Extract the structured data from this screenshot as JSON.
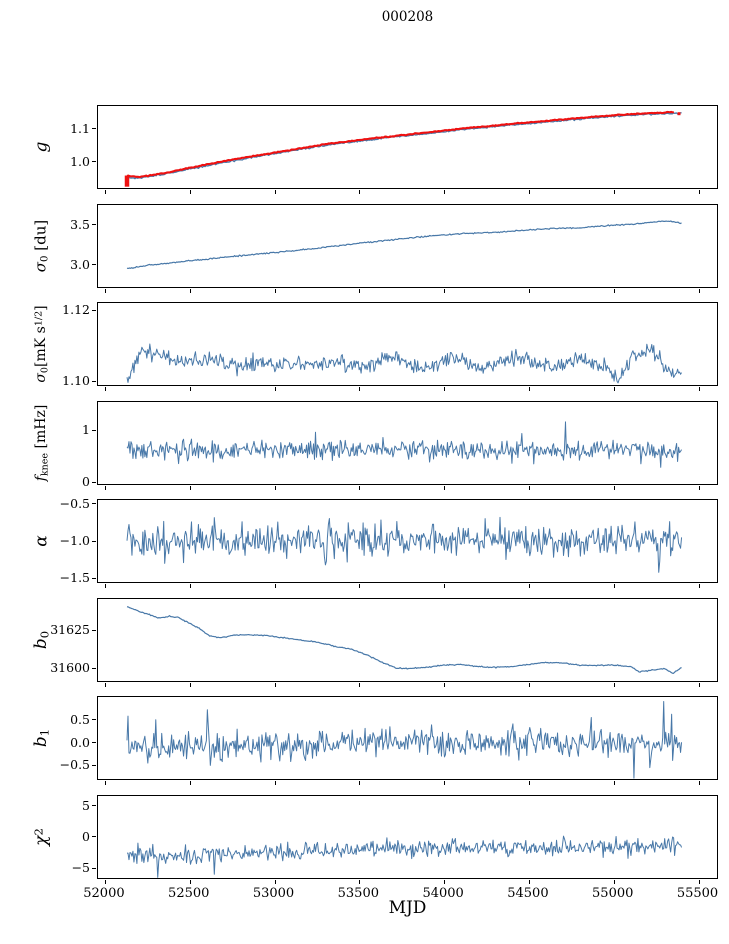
{
  "title": "000208",
  "xlabel": "MJD",
  "colors": {
    "data_line": "#4878a8",
    "fit_line": "#ee1111",
    "axis": "#000000",
    "background": "#ffffff"
  },
  "chart_data": {
    "type": "line",
    "title": "000208",
    "xlabel": "MJD",
    "grid": false,
    "legend": null,
    "xlim": [
      51959,
      55609
    ],
    "x_range_data": [
      52130,
      55400
    ],
    "xticks": [
      52000,
      52500,
      53000,
      53500,
      54000,
      54500,
      55000,
      55500
    ],
    "xtick_labels": [
      "52000",
      "52500",
      "53000",
      "53500",
      "54000",
      "54500",
      "55000",
      "55500"
    ],
    "panels": [
      {
        "id": "g",
        "ylabel": "g",
        "ylabel_parts": [
          {
            "t": "g",
            "i": true
          }
        ],
        "ylabel_size": 17,
        "ylim": [
          0.92,
          1.17
        ],
        "yticks": [
          1.0,
          1.1
        ],
        "ytick_labels": [
          "1.0",
          "1.1"
        ],
        "series": [
          {
            "name": "gain-data-line",
            "color": "#4878a8",
            "lw": 1.3,
            "n": 420,
            "seed": 101,
            "noise": 0.0012,
            "anchors": {
              "x": [
                52130,
                52200,
                52350,
                52500,
                52720,
                52900,
                53100,
                53300,
                53500,
                53700,
                53900,
                54150,
                54400,
                54600,
                54800,
                55000,
                55150,
                55300,
                55400
              ],
              "y": [
                0.953,
                0.95,
                0.962,
                0.978,
                1.0,
                1.016,
                1.033,
                1.05,
                1.063,
                1.075,
                1.086,
                1.1,
                1.112,
                1.121,
                1.13,
                1.138,
                1.143,
                1.147,
                1.149
              ]
            }
          },
          {
            "name": "gain-fit-line",
            "color": "#ee1111",
            "lw": 2.1,
            "n": 400,
            "seed": 142,
            "noise": 0.0007,
            "offset": 0.0035,
            "x_end": 55355,
            "anchors": {
              "x": [
                52130,
                52200,
                52350,
                52500,
                52720,
                52900,
                53100,
                53300,
                53500,
                53700,
                53900,
                54150,
                54400,
                54600,
                54800,
                55000,
                55150,
                55300,
                55400
              ],
              "y": [
                0.953,
                0.95,
                0.962,
                0.978,
                1.0,
                1.016,
                1.033,
                1.05,
                1.063,
                1.075,
                1.086,
                1.1,
                1.112,
                1.121,
                1.13,
                1.138,
                1.143,
                1.147,
                1.149
              ]
            }
          }
        ],
        "extras": {
          "errorbar": {
            "x": 52130,
            "y0": 0.924,
            "y1": 0.958,
            "w": 4.5,
            "color": "#ee1111"
          },
          "marker": {
            "x": 55385,
            "y": 1.1465,
            "s": 3,
            "color": "#ee1111"
          }
        }
      },
      {
        "id": "sigma0-du",
        "ylabel": "σ0 [du]",
        "ylabel_parts": [
          {
            "t": "σ",
            "i": true
          },
          {
            "t": "0",
            "sub": true
          },
          {
            "t": " [du]"
          }
        ],
        "ylabel_size": 15,
        "ylim": [
          2.73,
          3.75
        ],
        "yticks": [
          3.0,
          3.5
        ],
        "ytick_labels": [
          "3.0",
          "3.5"
        ],
        "series": [
          {
            "name": "sigma0-du-line",
            "color": "#4878a8",
            "lw": 1.2,
            "n": 470,
            "seed": 102,
            "noise": 0.004,
            "anchors": {
              "x": [
                52130,
                52250,
                52450,
                52700,
                52950,
                53200,
                53400,
                53550,
                53750,
                53950,
                54150,
                54300,
                54500,
                54650,
                54800,
                55000,
                55120,
                55200,
                55280,
                55340,
                55400
              ],
              "y": [
                2.955,
                3.0,
                3.045,
                3.1,
                3.15,
                3.2,
                3.25,
                3.285,
                3.33,
                3.37,
                3.4,
                3.408,
                3.44,
                3.458,
                3.465,
                3.5,
                3.512,
                3.53,
                3.548,
                3.545,
                3.525
              ]
            }
          }
        ]
      },
      {
        "id": "sigma0-mks",
        "ylabel": "σ0[mK s1/2]",
        "ylabel_parts": [
          {
            "t": "σ",
            "i": true
          },
          {
            "t": "0",
            "sub": true
          },
          {
            "t": "[mK s"
          },
          {
            "t": "1/2",
            "sup": true
          },
          {
            "t": "]"
          }
        ],
        "ylabel_size": 14,
        "ylim": [
          1.099,
          1.122
        ],
        "yticks": [
          1.1,
          1.12
        ],
        "ytick_labels": [
          "1.10",
          "1.12"
        ],
        "series": [
          {
            "name": "sigma0-mks-line",
            "color": "#4878a8",
            "lw": 1.0,
            "n": 560,
            "seed": 103,
            "noise": 0.0011,
            "wave": {
              "amp": 0.0009,
              "period": 365
            },
            "spikes": [
              [
                55033,
                1.1005
              ],
              [
                52150,
                1.1008
              ]
            ],
            "anchors": {
              "x": [
                52130,
                52200,
                52300,
                52420,
                52550,
                52700,
                52850,
                53000,
                53150,
                53300,
                53450,
                53600,
                53750,
                53900,
                54050,
                54200,
                54350,
                54500,
                54650,
                54800,
                54950,
                55033,
                55100,
                55220,
                55320,
                55400
              ],
              "y": [
                1.1015,
                1.1065,
                1.108,
                1.107,
                1.105,
                1.106,
                1.105,
                1.1042,
                1.106,
                1.1045,
                1.1055,
                1.1048,
                1.106,
                1.1042,
                1.1058,
                1.1045,
                1.1052,
                1.106,
                1.1045,
                1.1055,
                1.1048,
                1.1005,
                1.106,
                1.1088,
                1.104,
                1.1025
              ]
            }
          }
        ]
      },
      {
        "id": "fknee",
        "ylabel": "fknee [mHz]",
        "ylabel_parts": [
          {
            "t": "f",
            "i": true
          },
          {
            "t": "knee",
            "sub": true
          },
          {
            "t": " [mHz]"
          }
        ],
        "ylabel_size": 14,
        "ylim": [
          -0.02,
          1.55
        ],
        "yticks": [
          0,
          1
        ],
        "ytick_labels": [
          "0",
          "1"
        ],
        "series": [
          {
            "name": "fknee-line",
            "color": "#4878a8",
            "lw": 1.0,
            "n": 560,
            "seed": 104,
            "noise": 0.095,
            "spikes": [
              [
                54715,
                1.17
              ],
              [
                55280,
                0.3
              ],
              [
                53240,
                0.97
              ]
            ],
            "anchors": {
              "x": [
                52130,
                55400
              ],
              "y": [
                0.64,
                0.63
              ]
            }
          }
        ]
      },
      {
        "id": "alpha",
        "ylabel": "α",
        "ylabel_parts": [
          {
            "t": "α",
            "i": true
          }
        ],
        "ylabel_size": 17,
        "ylim": [
          -1.55,
          -0.45
        ],
        "yticks": [
          -1.5,
          -1.0,
          -0.5
        ],
        "ytick_labels": [
          "−1.5",
          "−1.0",
          "−0.5"
        ],
        "series": [
          {
            "name": "alpha-line",
            "color": "#4878a8",
            "lw": 1.0,
            "n": 560,
            "seed": 105,
            "noise": 0.105,
            "spikes": [
              [
                55268,
                -1.42
              ],
              [
                54239,
                -0.7
              ],
              [
                52350,
                -1.3
              ],
              [
                53300,
                -1.32
              ]
            ],
            "anchors": {
              "x": [
                52130,
                55400
              ],
              "y": [
                -1.005,
                -0.98
              ]
            }
          }
        ]
      },
      {
        "id": "b0",
        "ylabel": "b0",
        "ylabel_parts": [
          {
            "t": "b",
            "i": true
          },
          {
            "t": "0",
            "sub": true
          }
        ],
        "ylabel_size": 17,
        "ylim": [
          31592,
          31646
        ],
        "yticks": [
          31600,
          31625
        ],
        "ytick_labels": [
          "31600",
          "31625"
        ],
        "series": [
          {
            "name": "b0-line",
            "color": "#4878a8",
            "lw": 1.2,
            "n": 470,
            "seed": 106,
            "noise": 0.18,
            "anchors": {
              "x": [
                52130,
                52250,
                52320,
                52380,
                52430,
                52550,
                52620,
                52680,
                52750,
                52850,
                52950,
                53050,
                53150,
                53250,
                53350,
                53450,
                53550,
                53650,
                53720,
                53800,
                53900,
                54000,
                54100,
                54200,
                54300,
                54400,
                54500,
                54600,
                54700,
                54800,
                54900,
                55000,
                55100,
                55150,
                55250,
                55300,
                55350,
                55400
              ],
              "y": [
                31641,
                31636,
                31633.5,
                31634.5,
                31634,
                31627,
                31621.5,
                31620.5,
                31622,
                31622.5,
                31622,
                31620.5,
                31619,
                31617.5,
                31615,
                31613,
                31609,
                31603.5,
                31600.5,
                31600.2,
                31601,
                31602.5,
                31602.8,
                31601.5,
                31601,
                31601.5,
                31603,
                31604.2,
                31604,
                31602.5,
                31602.2,
                31602.5,
                31601.5,
                31598,
                31599.5,
                31600.3,
                31597,
                31601
              ]
            }
          }
        ]
      },
      {
        "id": "b1",
        "ylabel": "b1",
        "ylabel_parts": [
          {
            "t": "b",
            "i": true
          },
          {
            "t": "1",
            "sub": true
          }
        ],
        "ylabel_size": 17,
        "ylim": [
          -0.8,
          1.0
        ],
        "yticks": [
          -0.5,
          0.0,
          0.5
        ],
        "ytick_labels": [
          "−0.5",
          "0.0",
          "0.5"
        ],
        "series": [
          {
            "name": "b1-line",
            "color": "#4878a8",
            "lw": 1.0,
            "n": 560,
            "seed": 107,
            "noise": 0.145,
            "spikes": [
              [
                52135,
                0.58
              ],
              [
                52300,
                0.5
              ],
              [
                52605,
                0.72
              ],
              [
                52620,
                -0.5
              ],
              [
                52250,
                -0.45
              ],
              [
                55297,
                0.9
              ],
              [
                55120,
                -0.78
              ],
              [
                55340,
                0.62
              ],
              [
                55215,
                -0.55
              ],
              [
                54870,
                0.55
              ]
            ],
            "anchors": {
              "x": [
                52130,
                52700,
                53200,
                54000,
                55400
              ],
              "y": [
                -0.12,
                -0.1,
                -0.03,
                0.0,
                0.02
              ]
            }
          }
        ]
      },
      {
        "id": "chi2",
        "ylabel": "χ2",
        "ylabel_parts": [
          {
            "t": "χ",
            "i": true
          },
          {
            "t": "2",
            "sup": true
          }
        ],
        "ylabel_size": 17,
        "ylim": [
          -6.5,
          6.6
        ],
        "yticks": [
          -5,
          0,
          5
        ],
        "ytick_labels": [
          "−5",
          "0",
          "5"
        ],
        "series": [
          {
            "name": "chi2-line",
            "color": "#4878a8",
            "lw": 1.0,
            "n": 560,
            "seed": 108,
            "noise": 0.7,
            "spikes": [
              [
                52311,
                -6.4
              ],
              [
                52645,
                -5.9
              ]
            ],
            "anchors": {
              "x": [
                52130,
                52500,
                52800,
                53000,
                53500,
                54000,
                54500,
                55000,
                55400
              ],
              "y": [
                -2.7,
                -2.9,
                -2.5,
                -2.4,
                -2.0,
                -1.7,
                -1.6,
                -1.5,
                -1.3
              ]
            }
          }
        ]
      }
    ]
  }
}
